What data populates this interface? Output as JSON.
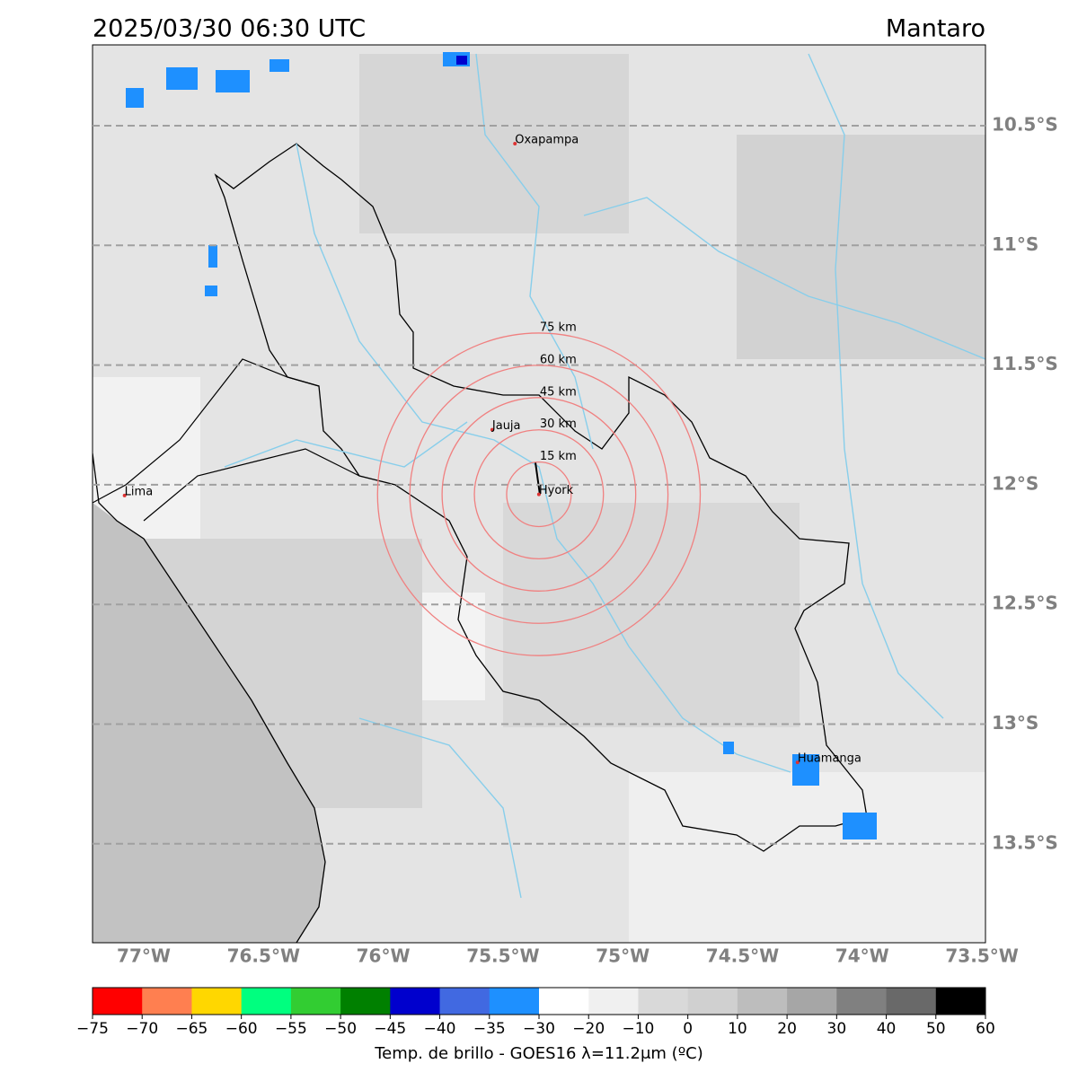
{
  "header": {
    "time": "2025/03/30 06:30 UTC",
    "region": "Mantaro"
  },
  "map": {
    "lon_ticks": [
      {
        "value": -77,
        "label": "77°W"
      },
      {
        "value": -76.5,
        "label": "76.5°W"
      },
      {
        "value": -76,
        "label": "76°W"
      },
      {
        "value": -75.5,
        "label": "75.5°W"
      },
      {
        "value": -75,
        "label": "75°W"
      },
      {
        "value": -74.5,
        "label": "74.5°W"
      },
      {
        "value": -74,
        "label": "74°W"
      },
      {
        "value": -73.5,
        "label": "73.5°W"
      }
    ],
    "lat_ticks": [
      {
        "value": -10.5,
        "label": "10.5°S"
      },
      {
        "value": -11,
        "label": "11°S"
      },
      {
        "value": -11.5,
        "label": "11.5°S"
      },
      {
        "value": -12,
        "label": "12°S"
      },
      {
        "value": -12.5,
        "label": "12.5°S"
      },
      {
        "value": -13,
        "label": "13°S"
      },
      {
        "value": -13.5,
        "label": "13.5°S"
      }
    ],
    "cities": [
      {
        "name": "Oxapampa",
        "lon": -75.45,
        "lat": -10.575
      },
      {
        "name": "Jauja",
        "lon": -75.545,
        "lat": -11.77
      },
      {
        "name": "Lima",
        "lon": -77.08,
        "lat": -12.045
      },
      {
        "name": "Hyork",
        "lon": -75.35,
        "lat": -12.04
      },
      {
        "name": "Huamanga",
        "lon": -74.27,
        "lat": -13.16
      }
    ],
    "rings": [
      {
        "radius_km": 15,
        "label": "15 km"
      },
      {
        "radius_km": 30,
        "label": "30 km"
      },
      {
        "radius_km": 45,
        "label": "45 km"
      },
      {
        "radius_km": 60,
        "label": "60 km"
      },
      {
        "radius_km": 75,
        "label": "75 km"
      }
    ]
  },
  "colorbar": {
    "label": "Temp. de brillo - GOES16 λ=11.2μm (ºC)",
    "ticks": [
      {
        "value": -75,
        "label": "−75"
      },
      {
        "value": -70,
        "label": "−70"
      },
      {
        "value": -65,
        "label": "−65"
      },
      {
        "value": -60,
        "label": "−60"
      },
      {
        "value": -55,
        "label": "−55"
      },
      {
        "value": -50,
        "label": "−50"
      },
      {
        "value": -45,
        "label": "−45"
      },
      {
        "value": -40,
        "label": "−40"
      },
      {
        "value": -35,
        "label": "−35"
      },
      {
        "value": -30,
        "label": "−30"
      },
      {
        "value": -20,
        "label": "−20"
      },
      {
        "value": -10,
        "label": "−10"
      },
      0,
      10,
      20,
      30,
      40,
      50,
      60
    ],
    "colors": [
      "#ff0000",
      "#ff7f50",
      "#ffd700",
      "#00ff7f",
      "#32cd32",
      "#008000",
      "#0000cd",
      "#4169e1",
      "#1e90ff",
      "#ffffff",
      "#f0f0f0",
      "#d9d9d9",
      "#d0d0d0",
      "#bdbdbd",
      "#a6a6a6",
      "#808080",
      "#696969",
      "#000000"
    ]
  }
}
